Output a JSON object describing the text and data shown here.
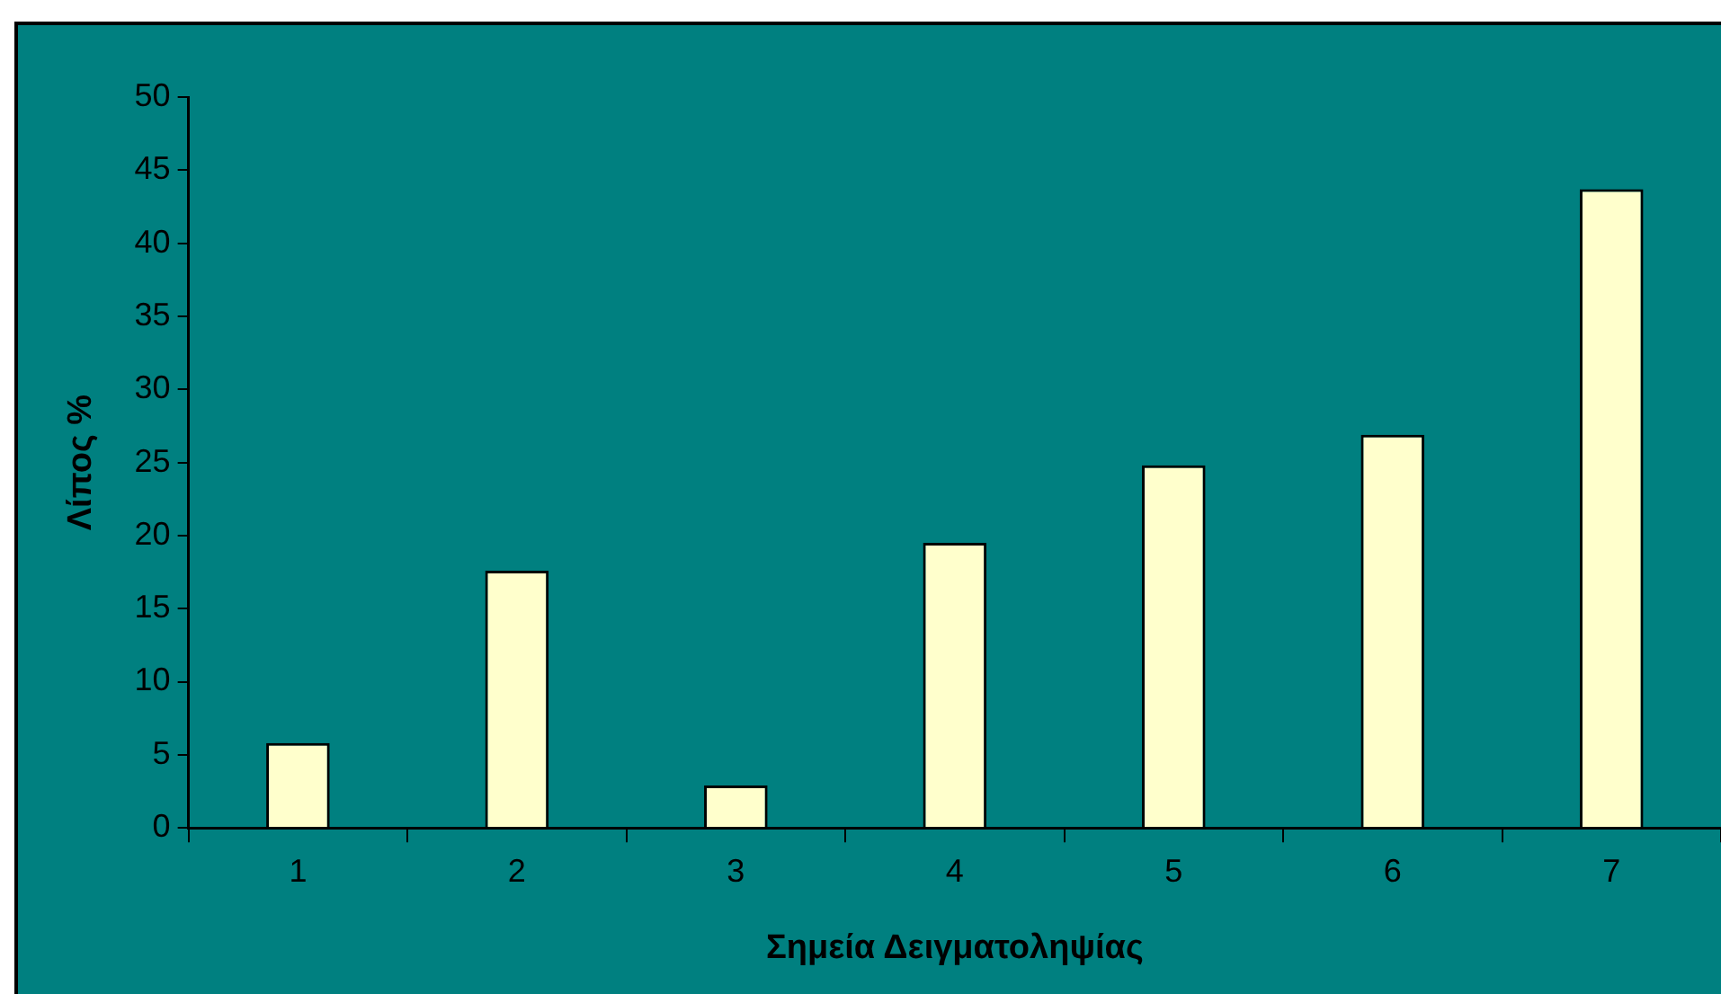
{
  "chart_data": {
    "type": "bar",
    "xlabel": "Σημεία Δειγματοληψίας",
    "ylabel": "Λίπος %",
    "categories": [
      "1",
      "2",
      "3",
      "4",
      "5",
      "6",
      "7"
    ],
    "values": [
      5.8,
      17.6,
      2.9,
      19.5,
      24.8,
      26.9,
      43.7
    ],
    "color": "#ffffcc",
    "ylim": [
      0,
      50
    ],
    "yticks": [
      0,
      5,
      10,
      15,
      20,
      25,
      30,
      35,
      40,
      45,
      50
    ],
    "grid": false,
    "legend": false
  }
}
